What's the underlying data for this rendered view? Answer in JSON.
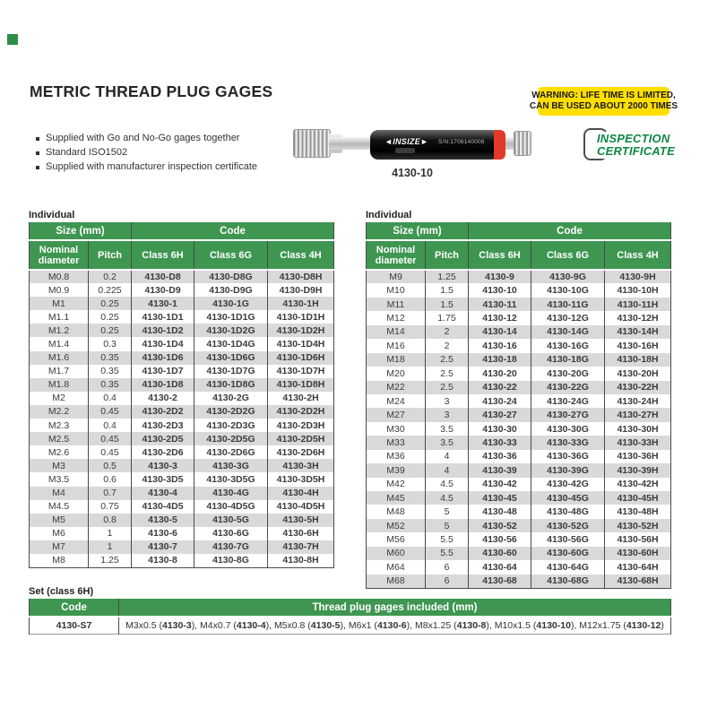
{
  "page": {
    "title": "METRIC THREAD PLUG GAGES",
    "features": [
      "Supplied with Go and No-Go gages together",
      "Standard ISO1502",
      "Supplied with manufacturer inspection certificate"
    ],
    "warning": {
      "line1": "WARNING: LIFE TIME IS LIMITED,",
      "line2": "CAN BE USED ABOUT 2000 TIMES",
      "bg_color": "#ffde00"
    },
    "certificate": {
      "line1": "INSPECTION",
      "line2": "CERTIFICATE",
      "text_color": "#0e8744"
    },
    "accent_green": "#3e9651",
    "row_alt_gray": "#d9d9d9",
    "gage_red": "#e23a2b"
  },
  "product": {
    "brand": "◄INSIZE►",
    "serial": "S/N:1706140008",
    "caption": "4130-10"
  },
  "individual_left": {
    "section_label": "Individual",
    "group_headers": [
      "Size (mm)",
      "Code"
    ],
    "columns": [
      "Nominal diameter",
      "Pitch",
      "Class 6H",
      "Class 6G",
      "Class 4H"
    ],
    "rows": [
      [
        "M0.8",
        "0.2",
        "4130-D8",
        "4130-D8G",
        "4130-D8H"
      ],
      [
        "M0.9",
        "0.225",
        "4130-D9",
        "4130-D9G",
        "4130-D9H"
      ],
      [
        "M1",
        "0.25",
        "4130-1",
        "4130-1G",
        "4130-1H"
      ],
      [
        "M1.1",
        "0.25",
        "4130-1D1",
        "4130-1D1G",
        "4130-1D1H"
      ],
      [
        "M1.2",
        "0.25",
        "4130-1D2",
        "4130-1D2G",
        "4130-1D2H"
      ],
      [
        "M1.4",
        "0.3",
        "4130-1D4",
        "4130-1D4G",
        "4130-1D4H"
      ],
      [
        "M1.6",
        "0.35",
        "4130-1D6",
        "4130-1D6G",
        "4130-1D6H"
      ],
      [
        "M1.7",
        "0.35",
        "4130-1D7",
        "4130-1D7G",
        "4130-1D7H"
      ],
      [
        "M1.8",
        "0.35",
        "4130-1D8",
        "4130-1D8G",
        "4130-1D8H"
      ],
      [
        "M2",
        "0.4",
        "4130-2",
        "4130-2G",
        "4130-2H"
      ],
      [
        "M2.2",
        "0.45",
        "4130-2D2",
        "4130-2D2G",
        "4130-2D2H"
      ],
      [
        "M2.3",
        "0.4",
        "4130-2D3",
        "4130-2D3G",
        "4130-2D3H"
      ],
      [
        "M2.5",
        "0.45",
        "4130-2D5",
        "4130-2D5G",
        "4130-2D5H"
      ],
      [
        "M2.6",
        "0.45",
        "4130-2D6",
        "4130-2D6G",
        "4130-2D6H"
      ],
      [
        "M3",
        "0.5",
        "4130-3",
        "4130-3G",
        "4130-3H"
      ],
      [
        "M3.5",
        "0.6",
        "4130-3D5",
        "4130-3D5G",
        "4130-3D5H"
      ],
      [
        "M4",
        "0.7",
        "4130-4",
        "4130-4G",
        "4130-4H"
      ],
      [
        "M4.5",
        "0.75",
        "4130-4D5",
        "4130-4D5G",
        "4130-4D5H"
      ],
      [
        "M5",
        "0.8",
        "4130-5",
        "4130-5G",
        "4130-5H"
      ],
      [
        "M6",
        "1",
        "4130-6",
        "4130-6G",
        "4130-6H"
      ],
      [
        "M7",
        "1",
        "4130-7",
        "4130-7G",
        "4130-7H"
      ],
      [
        "M8",
        "1.25",
        "4130-8",
        "4130-8G",
        "4130-8H"
      ]
    ]
  },
  "individual_right": {
    "section_label": "Individual",
    "group_headers": [
      "Size (mm)",
      "Code"
    ],
    "columns": [
      "Nominal diameter",
      "Pitch",
      "Class 6H",
      "Class 6G",
      "Class 4H"
    ],
    "rows": [
      [
        "M9",
        "1.25",
        "4130-9",
        "4130-9G",
        "4130-9H"
      ],
      [
        "M10",
        "1.5",
        "4130-10",
        "4130-10G",
        "4130-10H"
      ],
      [
        "M11",
        "1.5",
        "4130-11",
        "4130-11G",
        "4130-11H"
      ],
      [
        "M12",
        "1.75",
        "4130-12",
        "4130-12G",
        "4130-12H"
      ],
      [
        "M14",
        "2",
        "4130-14",
        "4130-14G",
        "4130-14H"
      ],
      [
        "M16",
        "2",
        "4130-16",
        "4130-16G",
        "4130-16H"
      ],
      [
        "M18",
        "2.5",
        "4130-18",
        "4130-18G",
        "4130-18H"
      ],
      [
        "M20",
        "2.5",
        "4130-20",
        "4130-20G",
        "4130-20H"
      ],
      [
        "M22",
        "2.5",
        "4130-22",
        "4130-22G",
        "4130-22H"
      ],
      [
        "M24",
        "3",
        "4130-24",
        "4130-24G",
        "4130-24H"
      ],
      [
        "M27",
        "3",
        "4130-27",
        "4130-27G",
        "4130-27H"
      ],
      [
        "M30",
        "3.5",
        "4130-30",
        "4130-30G",
        "4130-30H"
      ],
      [
        "M33",
        "3.5",
        "4130-33",
        "4130-33G",
        "4130-33H"
      ],
      [
        "M36",
        "4",
        "4130-36",
        "4130-36G",
        "4130-36H"
      ],
      [
        "M39",
        "4",
        "4130-39",
        "4130-39G",
        "4130-39H"
      ],
      [
        "M42",
        "4.5",
        "4130-42",
        "4130-42G",
        "4130-42H"
      ],
      [
        "M45",
        "4.5",
        "4130-45",
        "4130-45G",
        "4130-45H"
      ],
      [
        "M48",
        "5",
        "4130-48",
        "4130-48G",
        "4130-48H"
      ],
      [
        "M52",
        "5",
        "4130-52",
        "4130-52G",
        "4130-52H"
      ],
      [
        "M56",
        "5.5",
        "4130-56",
        "4130-56G",
        "4130-56H"
      ],
      [
        "M60",
        "5.5",
        "4130-60",
        "4130-60G",
        "4130-60H"
      ],
      [
        "M64",
        "6",
        "4130-64",
        "4130-64G",
        "4130-64H"
      ],
      [
        "M68",
        "6",
        "4130-68",
        "4130-68G",
        "4130-68H"
      ]
    ]
  },
  "set_table": {
    "section_label": "Set (class 6H)",
    "columns": [
      "Code",
      "Thread plug gages included (mm)"
    ],
    "code": "4130-S7",
    "items": [
      {
        "size": "M3x0.5",
        "code": "4130-3"
      },
      {
        "size": "M4x0.7",
        "code": "4130-4"
      },
      {
        "size": "M5x0.8",
        "code": "4130-5"
      },
      {
        "size": "M6x1",
        "code": "4130-6"
      },
      {
        "size": "M8x1.25",
        "code": "4130-8"
      },
      {
        "size": "M10x1.5",
        "code": "4130-10"
      },
      {
        "size": "M12x1.75",
        "code": "4130-12"
      }
    ]
  }
}
